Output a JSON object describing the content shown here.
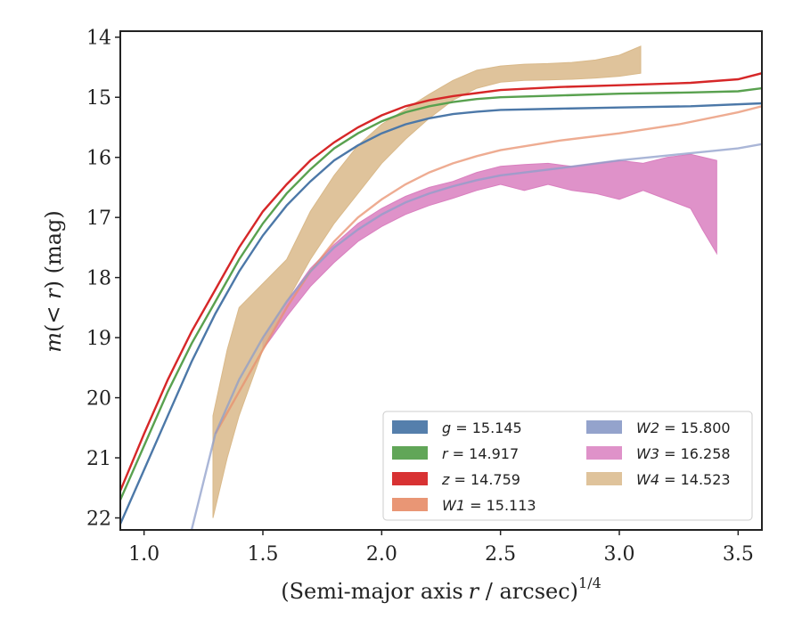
{
  "chart_data": {
    "type": "line",
    "xlabel": "(Semi-major axis r / arcsec)",
    "xlabel_main": "(Semi-major axis",
    "xlabel_var": "r",
    "xlabel_unit": " / arcsec)",
    "xlabel_exp": "1/4",
    "ylabel": "m(<r) (mag)",
    "ylabel_var": "m",
    "ylabel_paren": "(< ",
    "ylabel_r": "r",
    "ylabel_close": ") (mag)",
    "xlim": [
      0.9,
      3.6
    ],
    "ylim": [
      22.2,
      13.9
    ],
    "y_inverted": true,
    "x_ticks": [
      "1.0",
      "1.5",
      "2.0",
      "2.5",
      "3.0",
      "3.5"
    ],
    "y_ticks": [
      "14",
      "15",
      "16",
      "17",
      "18",
      "19",
      "20",
      "21",
      "22"
    ],
    "legend_position": "lower-right",
    "series": [
      {
        "name": "g = 15.145",
        "label_var": "g",
        "label_val": " = 15.145",
        "color": "#4c78a8",
        "kind": "line",
        "points": [
          [
            0.9,
            22.1
          ],
          [
            1.0,
            21.2
          ],
          [
            1.1,
            20.3
          ],
          [
            1.2,
            19.4
          ],
          [
            1.3,
            18.6
          ],
          [
            1.4,
            17.9
          ],
          [
            1.5,
            17.3
          ],
          [
            1.6,
            16.8
          ],
          [
            1.7,
            16.4
          ],
          [
            1.8,
            16.05
          ],
          [
            1.9,
            15.8
          ],
          [
            2.0,
            15.6
          ],
          [
            2.1,
            15.45
          ],
          [
            2.2,
            15.35
          ],
          [
            2.3,
            15.28
          ],
          [
            2.4,
            15.24
          ],
          [
            2.5,
            15.21
          ],
          [
            2.75,
            15.19
          ],
          [
            3.0,
            15.17
          ],
          [
            3.3,
            15.15
          ],
          [
            3.6,
            15.1
          ]
        ]
      },
      {
        "name": "r = 14.917",
        "label_var": "r",
        "label_val": " = 14.917",
        "color": "#59a14f",
        "kind": "line",
        "points": [
          [
            0.9,
            21.7
          ],
          [
            1.0,
            20.8
          ],
          [
            1.1,
            19.9
          ],
          [
            1.2,
            19.1
          ],
          [
            1.3,
            18.4
          ],
          [
            1.4,
            17.7
          ],
          [
            1.5,
            17.1
          ],
          [
            1.6,
            16.6
          ],
          [
            1.7,
            16.2
          ],
          [
            1.8,
            15.85
          ],
          [
            1.9,
            15.6
          ],
          [
            2.0,
            15.4
          ],
          [
            2.1,
            15.25
          ],
          [
            2.2,
            15.15
          ],
          [
            2.3,
            15.08
          ],
          [
            2.4,
            15.03
          ],
          [
            2.5,
            15.0
          ],
          [
            2.75,
            14.97
          ],
          [
            3.0,
            14.94
          ],
          [
            3.3,
            14.92
          ],
          [
            3.5,
            14.9
          ],
          [
            3.6,
            14.85
          ]
        ]
      },
      {
        "name": "z = 14.759",
        "label_var": "z",
        "label_val": " = 14.759",
        "color": "#d62728",
        "kind": "line",
        "points": [
          [
            0.9,
            21.55
          ],
          [
            1.0,
            20.6
          ],
          [
            1.1,
            19.7
          ],
          [
            1.2,
            18.9
          ],
          [
            1.3,
            18.2
          ],
          [
            1.4,
            17.5
          ],
          [
            1.5,
            16.9
          ],
          [
            1.6,
            16.45
          ],
          [
            1.7,
            16.05
          ],
          [
            1.8,
            15.75
          ],
          [
            1.9,
            15.5
          ],
          [
            2.0,
            15.3
          ],
          [
            2.1,
            15.15
          ],
          [
            2.2,
            15.05
          ],
          [
            2.3,
            14.98
          ],
          [
            2.4,
            14.93
          ],
          [
            2.5,
            14.88
          ],
          [
            2.75,
            14.83
          ],
          [
            3.0,
            14.8
          ],
          [
            3.3,
            14.76
          ],
          [
            3.5,
            14.7
          ],
          [
            3.6,
            14.6
          ]
        ]
      },
      {
        "name": "W1 = 15.113",
        "label_var": "W1",
        "label_val": " = 15.113",
        "color": "#e8906e",
        "kind": "line",
        "points": [
          [
            1.3,
            20.6
          ],
          [
            1.4,
            19.9
          ],
          [
            1.5,
            19.2
          ],
          [
            1.6,
            18.5
          ],
          [
            1.7,
            17.9
          ],
          [
            1.8,
            17.4
          ],
          [
            1.9,
            17.0
          ],
          [
            2.0,
            16.7
          ],
          [
            2.1,
            16.45
          ],
          [
            2.2,
            16.25
          ],
          [
            2.3,
            16.1
          ],
          [
            2.4,
            15.98
          ],
          [
            2.5,
            15.88
          ],
          [
            2.75,
            15.72
          ],
          [
            3.0,
            15.6
          ],
          [
            3.25,
            15.45
          ],
          [
            3.5,
            15.25
          ],
          [
            3.6,
            15.15
          ]
        ]
      },
      {
        "name": "W2 = 15.800",
        "label_var": "W2",
        "label_val": " = 15.800",
        "color": "#8e9ec9",
        "kind": "line",
        "points": [
          [
            1.2,
            22.2
          ],
          [
            1.3,
            20.6
          ],
          [
            1.4,
            19.7
          ],
          [
            1.5,
            19.0
          ],
          [
            1.6,
            18.4
          ],
          [
            1.7,
            17.9
          ],
          [
            1.8,
            17.5
          ],
          [
            1.9,
            17.2
          ],
          [
            2.0,
            16.95
          ],
          [
            2.1,
            16.75
          ],
          [
            2.2,
            16.6
          ],
          [
            2.3,
            16.48
          ],
          [
            2.4,
            16.38
          ],
          [
            2.5,
            16.3
          ],
          [
            2.75,
            16.18
          ],
          [
            3.0,
            16.05
          ],
          [
            3.25,
            15.95
          ],
          [
            3.5,
            15.85
          ],
          [
            3.6,
            15.78
          ]
        ]
      },
      {
        "name": "W3 = 16.258",
        "label_var": "W3",
        "label_val": " = 16.258",
        "color": "#d97fbf",
        "kind": "band",
        "upper": [
          [
            1.5,
            19.0
          ],
          [
            1.6,
            18.4
          ],
          [
            1.7,
            17.85
          ],
          [
            1.8,
            17.45
          ],
          [
            1.9,
            17.1
          ],
          [
            2.0,
            16.85
          ],
          [
            2.1,
            16.65
          ],
          [
            2.2,
            16.5
          ],
          [
            2.3,
            16.4
          ],
          [
            2.4,
            16.25
          ],
          [
            2.5,
            16.15
          ],
          [
            2.6,
            16.12
          ],
          [
            2.7,
            16.1
          ],
          [
            2.8,
            16.15
          ],
          [
            2.9,
            16.1
          ],
          [
            3.0,
            16.05
          ],
          [
            3.1,
            16.1
          ],
          [
            3.2,
            16.0
          ],
          [
            3.3,
            15.95
          ],
          [
            3.41,
            16.05
          ]
        ],
        "lower": [
          [
            1.5,
            19.2
          ],
          [
            1.6,
            18.65
          ],
          [
            1.7,
            18.15
          ],
          [
            1.8,
            17.75
          ],
          [
            1.9,
            17.4
          ],
          [
            2.0,
            17.15
          ],
          [
            2.1,
            16.95
          ],
          [
            2.2,
            16.8
          ],
          [
            2.3,
            16.68
          ],
          [
            2.4,
            16.55
          ],
          [
            2.5,
            16.45
          ],
          [
            2.6,
            16.55
          ],
          [
            2.7,
            16.45
          ],
          [
            2.8,
            16.55
          ],
          [
            2.9,
            16.6
          ],
          [
            3.0,
            16.7
          ],
          [
            3.1,
            16.55
          ],
          [
            3.2,
            16.7
          ],
          [
            3.3,
            16.85
          ],
          [
            3.35,
            17.2
          ],
          [
            3.41,
            17.6
          ]
        ]
      },
      {
        "name": "W4 = 14.523",
        "label_var": "W4",
        "label_val": " = 14.523",
        "color": "#d9b98a",
        "kind": "band",
        "upper": [
          [
            1.29,
            20.3
          ],
          [
            1.35,
            19.2
          ],
          [
            1.4,
            18.5
          ],
          [
            1.5,
            18.1
          ],
          [
            1.6,
            17.7
          ],
          [
            1.7,
            16.9
          ],
          [
            1.8,
            16.3
          ],
          [
            1.9,
            15.8
          ],
          [
            2.0,
            15.45
          ],
          [
            2.1,
            15.2
          ],
          [
            2.2,
            14.95
          ],
          [
            2.3,
            14.72
          ],
          [
            2.4,
            14.55
          ],
          [
            2.5,
            14.48
          ],
          [
            2.6,
            14.45
          ],
          [
            2.7,
            14.44
          ],
          [
            2.8,
            14.42
          ],
          [
            2.9,
            14.38
          ],
          [
            3.0,
            14.3
          ],
          [
            3.09,
            14.15
          ]
        ],
        "lower": [
          [
            1.29,
            22.0
          ],
          [
            1.35,
            21.0
          ],
          [
            1.4,
            20.3
          ],
          [
            1.5,
            19.2
          ],
          [
            1.6,
            18.4
          ],
          [
            1.7,
            17.7
          ],
          [
            1.8,
            17.1
          ],
          [
            1.9,
            16.6
          ],
          [
            2.0,
            16.1
          ],
          [
            2.1,
            15.7
          ],
          [
            2.2,
            15.35
          ],
          [
            2.3,
            15.05
          ],
          [
            2.4,
            14.85
          ],
          [
            2.5,
            14.75
          ],
          [
            2.6,
            14.72
          ],
          [
            2.7,
            14.71
          ],
          [
            2.8,
            14.7
          ],
          [
            2.9,
            14.68
          ],
          [
            3.0,
            14.65
          ],
          [
            3.09,
            14.6
          ]
        ]
      }
    ]
  }
}
